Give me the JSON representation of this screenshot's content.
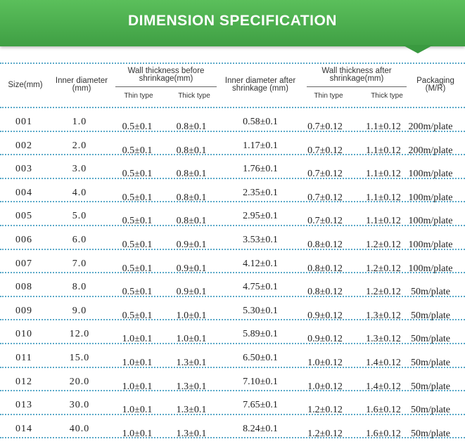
{
  "banner": {
    "title": "DIMENSION SPECIFICATION"
  },
  "header": {
    "size": "Size(mm)",
    "inner_diameter": [
      "Inner diameter",
      "(mm)"
    ],
    "wall_before": [
      "Wall thickness before",
      "shrinkage(mm)"
    ],
    "inner_after": [
      "Inner diameter after",
      "shrinkage (mm)"
    ],
    "wall_after": [
      "Wall thickness after",
      "shrinkage(mm)"
    ],
    "packaging": [
      "Packaging",
      "(M/R)"
    ],
    "thin_before": "Thin type",
    "thick_before": "Thick type",
    "thin_after": "Thin type",
    "thick_after": "Thick type"
  },
  "rows": [
    [
      "001",
      "1.0",
      "0.5±0.1",
      "0.8±0.1",
      "0.58±0.1",
      "0.7±0.12",
      "1.1±0.12",
      "200m/plate"
    ],
    [
      "002",
      "2.0",
      "0.5±0.1",
      "0.8±0.1",
      "1.17±0.1",
      "0.7±0.12",
      "1.1±0.12",
      "200m/plate"
    ],
    [
      "003",
      "3.0",
      "0.5±0.1",
      "0.8±0.1",
      "1.76±0.1",
      "0.7±0.12",
      "1.1±0.12",
      "100m/plate"
    ],
    [
      "004",
      "4.0",
      "0.5±0.1",
      "0.8±0.1",
      "2.35±0.1",
      "0.7±0.12",
      "1.1±0.12",
      "100m/plate"
    ],
    [
      "005",
      "5.0",
      "0.5±0.1",
      "0.8±0.1",
      "2.95±0.1",
      "0.7±0.12",
      "1.1±0.12",
      "100m/plate"
    ],
    [
      "006",
      "6.0",
      "0.5±0.1",
      "0.9±0.1",
      "3.53±0.1",
      "0.8±0.12",
      "1.2±0.12",
      "100m/plate"
    ],
    [
      "007",
      "7.0",
      "0.5±0.1",
      "0.9±0.1",
      "4.12±0.1",
      "0.8±0.12",
      "1.2±0.12",
      "100m/plate"
    ],
    [
      "008",
      "8.0",
      "0.5±0.1",
      "0.9±0.1",
      "4.75±0.1",
      "0.8±0.12",
      "1.2±0.12",
      "50m/plate"
    ],
    [
      "009",
      "9.0",
      "0.5±0.1",
      "1.0±0.1",
      "5.30±0.1",
      "0.9±0.12",
      "1.3±0.12",
      "50m/plate"
    ],
    [
      "010",
      "12.0",
      "1.0±0.1",
      "1.0±0.1",
      "5.89±0.1",
      "0.9±0.12",
      "1.3±0.12",
      "50m/plate"
    ],
    [
      "011",
      "15.0",
      "1.0±0.1",
      "1.3±0.1",
      "6.50±0.1",
      "1.0±0.12",
      "1.4±0.12",
      "50m/plate"
    ],
    [
      "012",
      "20.0",
      "1.0±0.1",
      "1.3±0.1",
      "7.10±0.1",
      "1.0±0.12",
      "1.4±0.12",
      "50m/plate"
    ],
    [
      "013",
      "30.0",
      "1.0±0.1",
      "1.3±0.1",
      "7.65±0.1",
      "1.2±0.12",
      "1.6±0.12",
      "50m/plate"
    ],
    [
      "014",
      "40.0",
      "1.0±0.1",
      "1.3±0.1",
      "8.24±0.1",
      "1.2±0.12",
      "1.6±0.12",
      "50m/plate"
    ]
  ]
}
